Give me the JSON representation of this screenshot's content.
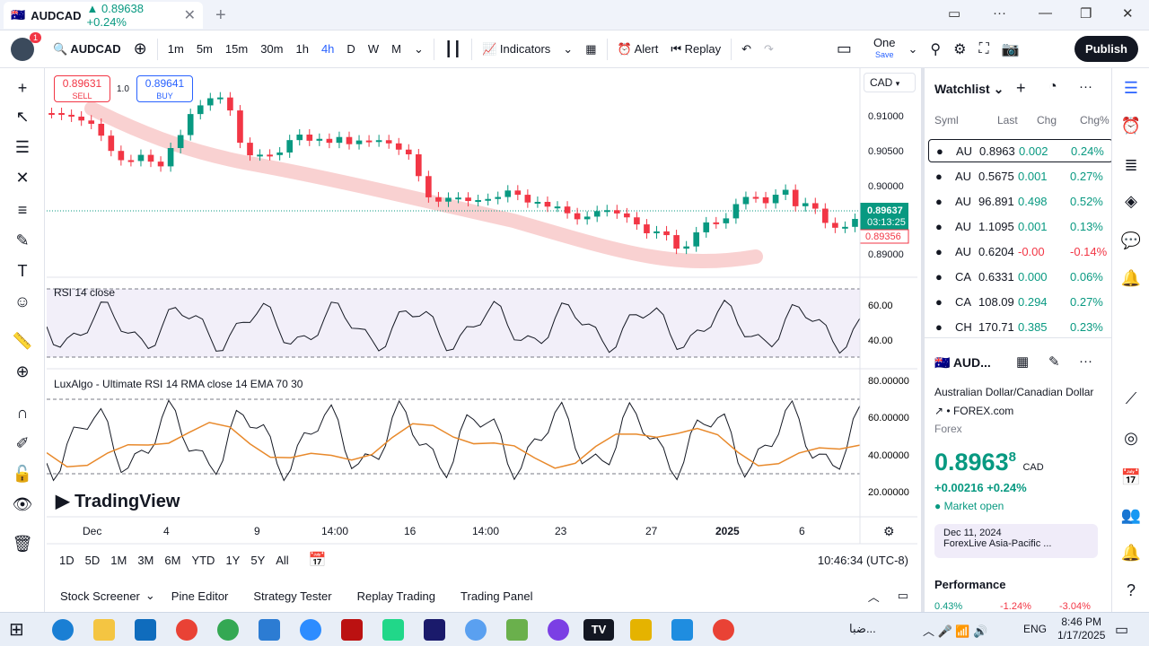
{
  "tab": {
    "symbol": "AUDCAD",
    "change_text": "▲ 0.89638 +0.24%"
  },
  "toolbar": {
    "symbol": "AUDCAD",
    "intervals": [
      "1m",
      "5m",
      "15m",
      "30m",
      "1h",
      "4h",
      "D",
      "W",
      "M"
    ],
    "active_interval": "4h",
    "indicators": "Indicators",
    "alert": "Alert",
    "replay": "Replay",
    "layout": "One",
    "layout_sub": "Save",
    "publish": "Publish",
    "badge": "1"
  },
  "order": {
    "sell_price": "0.89631",
    "sell_label": "SELL",
    "spread": "1.0",
    "buy_price": "0.89641",
    "buy_label": "BUY",
    "currency": "CAD"
  },
  "price_axis": [
    "0.91000",
    "0.90500",
    "0.90000",
    "0.89000"
  ],
  "last_price_tag": "0.89637",
  "countdown": "03:13:25",
  "bid_tag": "0.89356",
  "rsi": {
    "title": "RSI 14 close",
    "levels": [
      "60.00",
      "40.00"
    ]
  },
  "lux": {
    "title": "LuxAlgo - Ultimate RSI 14 RMA close 14 EMA 70 30",
    "levels": [
      "80.00000",
      "60.00000",
      "40.00000",
      "20.00000"
    ]
  },
  "watermark": "TradingView",
  "time_axis": [
    "Dec",
    "4",
    "9",
    "14:00",
    "16",
    "14:00",
    "23",
    "27",
    "2025",
    "6"
  ],
  "ranges": [
    "1D",
    "5D",
    "1M",
    "3M",
    "6M",
    "YTD",
    "1Y",
    "5Y",
    "All"
  ],
  "clock": "10:46:34 (UTC-8)",
  "bottom_tabs": [
    "Stock Screener",
    "Pine Editor",
    "Strategy Tester",
    "Replay Trading",
    "Trading Panel"
  ],
  "watchlist": {
    "title": "Watchlist",
    "columns": [
      "Syml",
      "Last",
      "Chg",
      "Chg%"
    ],
    "rows": [
      {
        "sym": "AU",
        "last": "0.8963",
        "chg": "0.002",
        "pct": "0.24%",
        "dir": "pos"
      },
      {
        "sym": "AU",
        "last": "0.5675",
        "chg": "0.001",
        "pct": "0.27%",
        "dir": "pos"
      },
      {
        "sym": "AU",
        "last": "96.891",
        "chg": "0.498",
        "pct": "0.52%",
        "dir": "pos"
      },
      {
        "sym": "AU",
        "last": "1.1095",
        "chg": "0.001",
        "pct": "0.13%",
        "dir": "pos"
      },
      {
        "sym": "AU",
        "last": "0.6204",
        "chg": "-0.00",
        "pct": "-0.14%",
        "dir": "neg"
      },
      {
        "sym": "CA",
        "last": "0.6331",
        "chg": "0.000",
        "pct": "0.06%",
        "dir": "pos"
      },
      {
        "sym": "CA",
        "last": "108.09",
        "chg": "0.294",
        "pct": "0.27%",
        "dir": "pos"
      },
      {
        "sym": "CH",
        "last": "170.71",
        "chg": "0.385",
        "pct": "0.23%",
        "dir": "pos"
      }
    ]
  },
  "details": {
    "symbol": "AUD...",
    "name": "Australian Dollar/Canadian Dollar",
    "source": "FOREX.com",
    "type": "Forex",
    "price": "0.8963",
    "price_sup": "8",
    "currency": "CAD",
    "change": "+0.00216",
    "change_pct": "+0.24%",
    "status": "Market open",
    "news_date": "Dec 11, 2024",
    "news_title": "ForexLive Asia-Pacific ...",
    "performance": "Performance",
    "perf": [
      "0.43%",
      "-1.24%",
      "-3.04%"
    ]
  },
  "taskbar": {
    "time": "8:46 PM",
    "date": "1/17/2025",
    "lang": "ENG",
    "weather": "ضبا..."
  },
  "colors": {
    "up": "#089981",
    "down": "#f23645",
    "accent": "#2962ff"
  }
}
